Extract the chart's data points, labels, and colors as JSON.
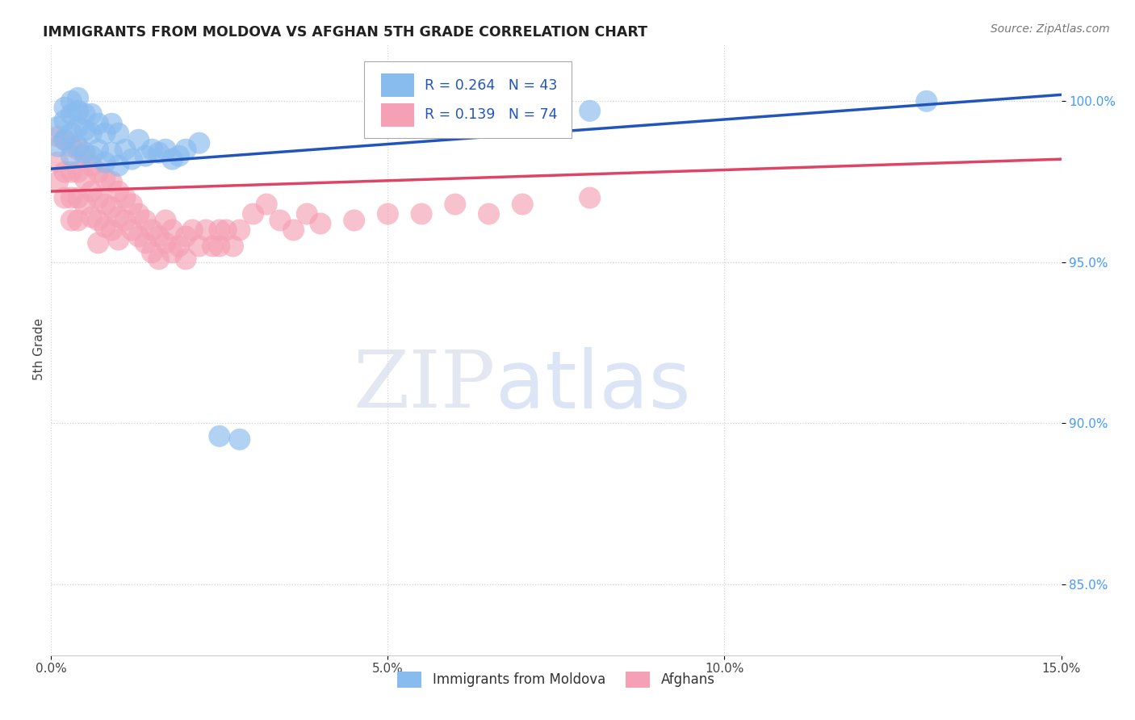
{
  "title": "IMMIGRANTS FROM MOLDOVA VS AFGHAN 5TH GRADE CORRELATION CHART",
  "source": "Source: ZipAtlas.com",
  "ylabel": "5th Grade",
  "xmin": 0.0,
  "xmax": 0.15,
  "ymin": 0.828,
  "ymax": 1.018,
  "yticks": [
    0.85,
    0.9,
    0.95,
    1.0
  ],
  "ytick_labels": [
    "85.0%",
    "90.0%",
    "95.0%",
    "100.0%"
  ],
  "ytick_color": "#4499ff",
  "legend_R_moldova": "0.264",
  "legend_N_moldova": "43",
  "legend_R_afghan": "0.139",
  "legend_N_afghan": "74",
  "moldova_color": "#88bbee",
  "afghan_color": "#f5a0b5",
  "moldova_line_color": "#2255bb",
  "afghan_line_color": "#dd4466",
  "moldova_points_x": [
    0.001,
    0.001,
    0.002,
    0.002,
    0.002,
    0.003,
    0.003,
    0.003,
    0.003,
    0.004,
    0.004,
    0.004,
    0.004,
    0.005,
    0.005,
    0.005,
    0.006,
    0.006,
    0.006,
    0.007,
    0.007,
    0.008,
    0.008,
    0.009,
    0.009,
    0.01,
    0.01,
    0.011,
    0.012,
    0.013,
    0.014,
    0.015,
    0.016,
    0.017,
    0.018,
    0.019,
    0.02,
    0.022,
    0.025,
    0.028,
    0.06,
    0.08,
    0.13
  ],
  "moldova_points_y": [
    0.992,
    0.986,
    0.988,
    0.994,
    0.998,
    0.983,
    0.99,
    0.996,
    1.0,
    0.986,
    0.992,
    0.997,
    1.001,
    0.984,
    0.991,
    0.996,
    0.983,
    0.99,
    0.996,
    0.985,
    0.993,
    0.981,
    0.99,
    0.984,
    0.993,
    0.98,
    0.99,
    0.985,
    0.982,
    0.988,
    0.983,
    0.985,
    0.984,
    0.985,
    0.982,
    0.983,
    0.985,
    0.987,
    0.896,
    0.895,
    0.992,
    0.997,
    1.0
  ],
  "afghan_points_x": [
    0.001,
    0.001,
    0.001,
    0.002,
    0.002,
    0.002,
    0.003,
    0.003,
    0.003,
    0.003,
    0.004,
    0.004,
    0.004,
    0.004,
    0.005,
    0.005,
    0.005,
    0.006,
    0.006,
    0.006,
    0.007,
    0.007,
    0.007,
    0.007,
    0.008,
    0.008,
    0.008,
    0.009,
    0.009,
    0.009,
    0.01,
    0.01,
    0.01,
    0.011,
    0.011,
    0.012,
    0.012,
    0.013,
    0.013,
    0.014,
    0.014,
    0.015,
    0.015,
    0.016,
    0.016,
    0.017,
    0.017,
    0.018,
    0.018,
    0.019,
    0.02,
    0.02,
    0.021,
    0.022,
    0.023,
    0.024,
    0.025,
    0.025,
    0.026,
    0.027,
    0.028,
    0.03,
    0.032,
    0.034,
    0.036,
    0.038,
    0.04,
    0.045,
    0.05,
    0.055,
    0.06,
    0.065,
    0.07,
    0.08
  ],
  "afghan_points_y": [
    0.989,
    0.981,
    0.975,
    0.988,
    0.978,
    0.97,
    0.986,
    0.978,
    0.97,
    0.963,
    0.985,
    0.978,
    0.97,
    0.963,
    0.983,
    0.976,
    0.968,
    0.98,
    0.972,
    0.964,
    0.978,
    0.97,
    0.963,
    0.956,
    0.976,
    0.968,
    0.961,
    0.975,
    0.967,
    0.96,
    0.972,
    0.964,
    0.957,
    0.97,
    0.963,
    0.968,
    0.96,
    0.965,
    0.958,
    0.963,
    0.956,
    0.96,
    0.953,
    0.958,
    0.951,
    0.956,
    0.963,
    0.953,
    0.96,
    0.955,
    0.958,
    0.951,
    0.96,
    0.955,
    0.96,
    0.955,
    0.96,
    0.955,
    0.96,
    0.955,
    0.96,
    0.965,
    0.968,
    0.963,
    0.96,
    0.965,
    0.962,
    0.963,
    0.965,
    0.965,
    0.968,
    0.965,
    0.968,
    0.97
  ],
  "watermark_zip": "ZIP",
  "watermark_atlas": "atlas",
  "background_color": "#ffffff",
  "grid_color": "#cccccc"
}
